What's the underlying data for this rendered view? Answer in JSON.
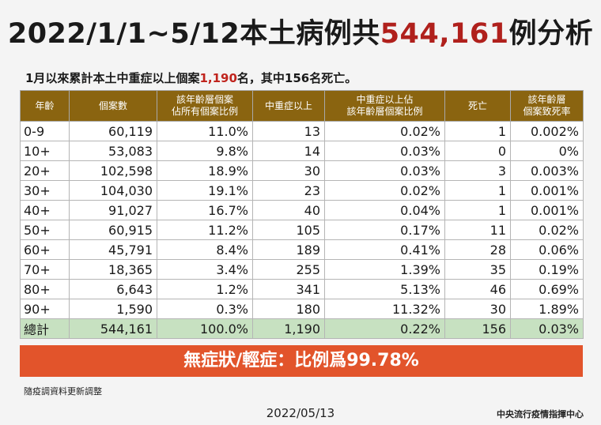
{
  "title": {
    "prefix": "2022/1/1~5/12本土病例共",
    "highlight": "544,161",
    "suffix": "例分析"
  },
  "subtitle": {
    "prefix": "1月以來累計本土中重症以上個案",
    "highlight": "1,190",
    "suffix": "名，其中156名死亡。"
  },
  "table": {
    "headers": [
      {
        "lines": [
          "年齡"
        ]
      },
      {
        "lines": [
          "個案數"
        ]
      },
      {
        "lines": [
          "該年齡層個案",
          "佔所有個案比例"
        ]
      },
      {
        "lines": [
          "中重症以上"
        ]
      },
      {
        "lines": [
          "中重症以上佔",
          "該年齡層個案比例"
        ]
      },
      {
        "lines": [
          "死亡"
        ]
      },
      {
        "lines": [
          "該年齡層",
          "個案致死率"
        ]
      }
    ],
    "rows": [
      [
        "0-9",
        "60,119",
        "11.0%",
        "13",
        "0.02%",
        "1",
        "0.002%"
      ],
      [
        "10+",
        "53,083",
        "9.8%",
        "14",
        "0.03%",
        "0",
        "0%"
      ],
      [
        "20+",
        "102,598",
        "18.9%",
        "30",
        "0.03%",
        "3",
        "0.003%"
      ],
      [
        "30+",
        "104,030",
        "19.1%",
        "23",
        "0.02%",
        "1",
        "0.001%"
      ],
      [
        "40+",
        "91,027",
        "16.7%",
        "40",
        "0.04%",
        "1",
        "0.001%"
      ],
      [
        "50+",
        "60,915",
        "11.2%",
        "105",
        "0.17%",
        "11",
        "0.02%"
      ],
      [
        "60+",
        "45,791",
        "8.4%",
        "189",
        "0.41%",
        "28",
        "0.06%"
      ],
      [
        "70+",
        "18,365",
        "3.4%",
        "255",
        "1.39%",
        "35",
        "0.19%"
      ],
      [
        "80+",
        "6,643",
        "1.2%",
        "341",
        "5.13%",
        "46",
        "0.69%"
      ],
      [
        "90+",
        "1,590",
        "0.3%",
        "180",
        "11.32%",
        "30",
        "1.89%"
      ]
    ],
    "total": [
      "總計",
      "544,161",
      "100.0%",
      "1,190",
      "0.22%",
      "156",
      "0.03%"
    ]
  },
  "banner": "無症狀/輕症：比例爲99.78%",
  "note": "隨疫調資料更新調整",
  "date": "2022/05/13",
  "org": "中央流行疫情指揮中心",
  "colors": {
    "header_bg": "#8a6410",
    "highlight_red": "#b0201c",
    "total_row_bg": "#c7e1c1",
    "banner_bg": "#e2542b"
  }
}
